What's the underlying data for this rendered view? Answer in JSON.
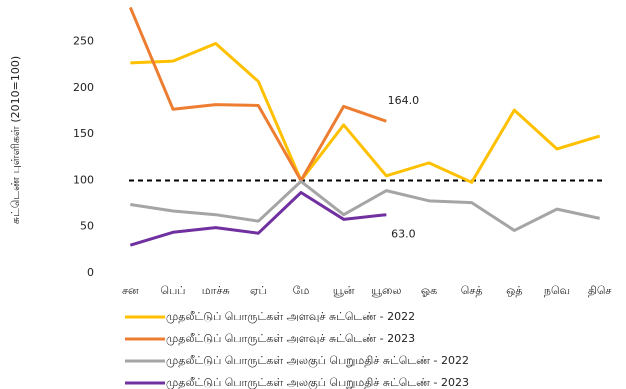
{
  "chart_data": {
    "type": "line",
    "y_label": "சுட்டெண் புள்ளிகள்  (2010=100)",
    "categories": [
      "சன",
      "பெப்",
      "மாச்சு",
      "ஏப்",
      "மே",
      "யூன்",
      "யூலை",
      "ஓக",
      "செத்",
      "ஒத்",
      "நவெ",
      "திசெ"
    ],
    "series": [
      {
        "name": "முதலீட்டுப் பொருட்கள் அளவுச் சுட்டெண்  - 2022",
        "color": "#FFC000",
        "values": [
          227,
          229,
          248,
          207,
          100,
          160,
          105,
          119,
          98,
          176,
          134,
          148
        ]
      },
      {
        "name": "முதலீட்டுப் பொருட்கள் அளவுச் சுட்டெண்  - 2023",
        "color": "#ED7D31",
        "values": [
          287,
          177,
          182,
          181,
          100,
          180,
          164,
          null,
          null,
          null,
          null,
          null
        ],
        "value_labels": [
          null,
          null,
          null,
          null,
          null,
          null,
          "164.0",
          null,
          null,
          null,
          null,
          null
        ]
      },
      {
        "name": "முதலீட்டுப் பொருட்கள் அலகுப் பெறுமதிச் சுட்டெண்  - 2022",
        "color": "#A5A5A5",
        "values": [
          74,
          67,
          63,
          56,
          99,
          63,
          89,
          78,
          76,
          46,
          69,
          59
        ]
      },
      {
        "name": "முதலீட்டுப் பொருட்கள் அலகுப் பெறுமதிச் சுட்டெண்  - 2023",
        "color": "#7030A0",
        "values": [
          30,
          44,
          49,
          43,
          87,
          58,
          63,
          null,
          null,
          null,
          null,
          null
        ],
        "value_labels": [
          null,
          null,
          null,
          null,
          null,
          null,
          "63.0",
          null,
          null,
          null,
          null,
          null
        ]
      }
    ],
    "reference_line": 100,
    "ylim": [
      0,
      295
    ],
    "yticks": [
      0,
      50,
      100,
      150,
      200,
      250
    ]
  }
}
